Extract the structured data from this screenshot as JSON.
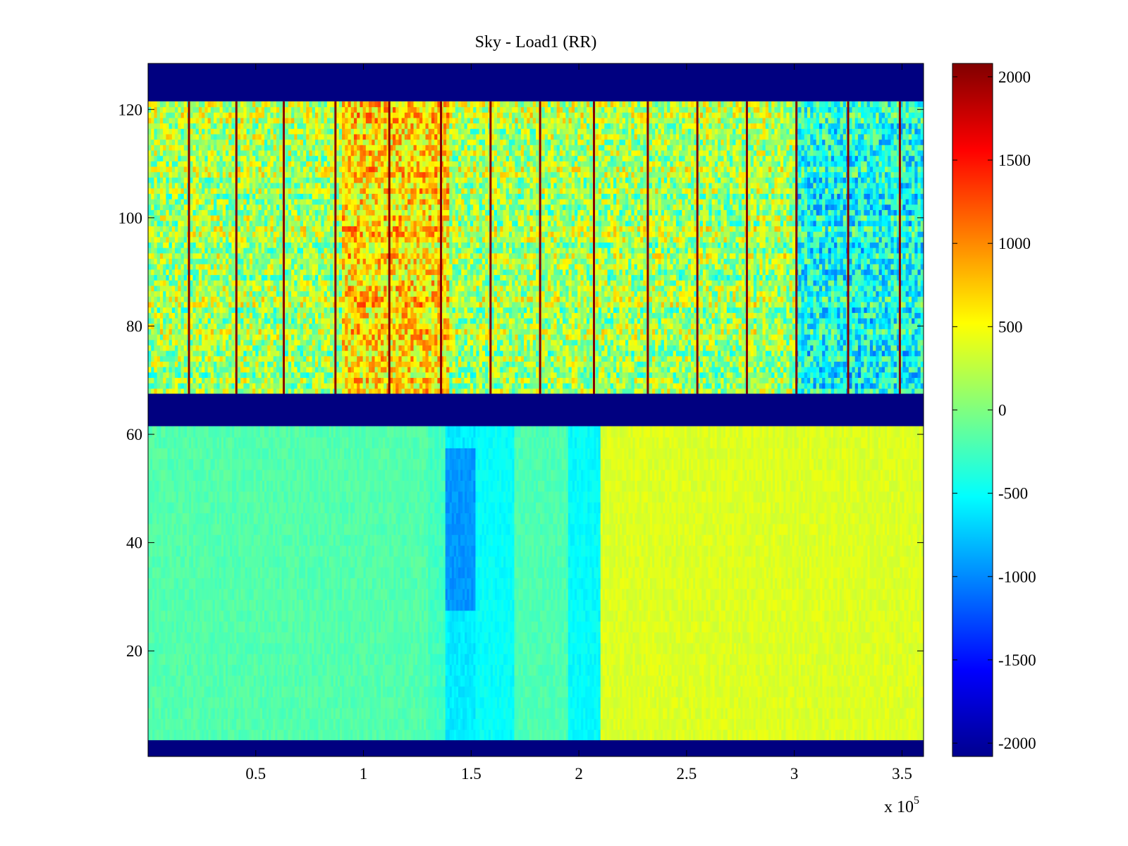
{
  "chart_data": {
    "type": "heatmap",
    "title": "Sky - Load1 (RR)",
    "xlabel": "",
    "ylabel": "",
    "x_multiplier_label": "x 10",
    "x_multiplier_exponent": "5",
    "xlim": [
      0,
      3.6
    ],
    "ylim": [
      0.5,
      128.5
    ],
    "x_ticks": [
      0.5,
      1,
      1.5,
      2,
      2.5,
      3,
      3.5
    ],
    "x_tick_labels": [
      "0.5",
      "1",
      "1.5",
      "2",
      "2.5",
      "3",
      "3.5"
    ],
    "y_ticks": [
      20,
      40,
      60,
      80,
      100,
      120
    ],
    "y_tick_labels": [
      "20",
      "40",
      "60",
      "80",
      "100",
      "120"
    ],
    "colormap": "jet",
    "clim": [
      -2080,
      2080
    ],
    "colorbar": {
      "ticks": [
        2000,
        1500,
        1000,
        500,
        0,
        -500,
        -1000,
        -1500,
        -2000
      ],
      "tick_labels": [
        "2000",
        "1500",
        "1000",
        "500",
        "0",
        "-500",
        "-1000",
        "-1500",
        "-2000"
      ]
    },
    "masked_channel_bands": [
      {
        "y_from": 121.5,
        "y_to": 128.5,
        "value": -2080
      },
      {
        "y_from": 61.5,
        "y_to": 67.5,
        "value": -2080
      },
      {
        "y_from": 0.5,
        "y_to": 3.5,
        "value": -2080
      }
    ],
    "upper_region": {
      "y_from": 67.5,
      "y_to": 121.5,
      "baseline_value": 150,
      "warm_x_range": [
        0.9,
        1.4
      ],
      "warm_value": 650,
      "cool_x_range": [
        3.0,
        3.6
      ],
      "cool_value": -450,
      "spike_x_positions": [
        0.19,
        0.41,
        0.63,
        0.87,
        1.12,
        1.36,
        1.59,
        1.82,
        2.07,
        2.32,
        2.55,
        2.78,
        3.01,
        3.25,
        3.49
      ],
      "spike_value": 2050
    },
    "lower_region": {
      "y_from": 3.5,
      "y_to": 61.5,
      "segments": [
        {
          "x_from": 0.0,
          "x_to": 1.3,
          "value": -180
        },
        {
          "x_from": 1.3,
          "x_to": 1.38,
          "value": -250
        },
        {
          "x_from": 1.38,
          "x_to": 1.52,
          "value": -600
        },
        {
          "x_from": 1.52,
          "x_to": 1.7,
          "value": -500
        },
        {
          "x_from": 1.7,
          "x_to": 1.95,
          "value": -200
        },
        {
          "x_from": 1.95,
          "x_to": 2.1,
          "value": -520
        },
        {
          "x_from": 2.1,
          "x_to": 3.6,
          "value": 380
        }
      ],
      "dip": {
        "x_from": 1.38,
        "x_to": 1.52,
        "y_from": 27,
        "y_to": 57,
        "value": -950
      }
    }
  }
}
